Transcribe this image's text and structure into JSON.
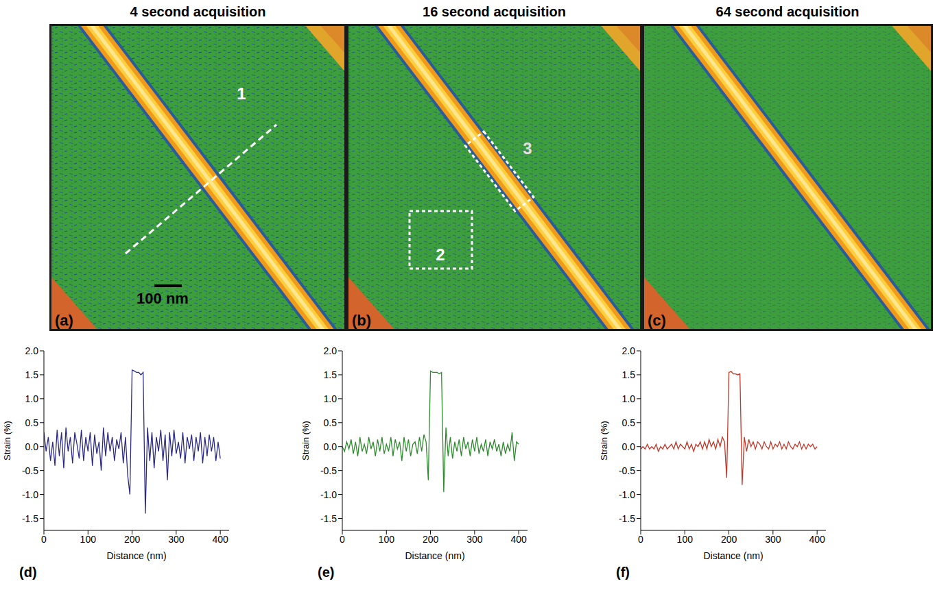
{
  "columns": [
    "4 second acquisition",
    "16 second acquisition",
    "64 second acquisition"
  ],
  "maps": [
    {
      "panel_label": "(a)",
      "scale_bar": "100 nm",
      "markers": [
        {
          "label": "1",
          "kind": "line"
        }
      ]
    },
    {
      "panel_label": "(b)",
      "markers": [
        {
          "label": "2",
          "kind": "box"
        },
        {
          "label": "3",
          "kind": "box"
        }
      ]
    },
    {
      "panel_label": "(c)"
    }
  ],
  "chart_data": [
    {
      "type": "line",
      "panel_label": "(d)",
      "x_label": "Distance (nm)",
      "y_label": "Strain (%)",
      "color": "#2b2b85",
      "xlim": [
        0,
        420
      ],
      "xticks": [
        0,
        100,
        200,
        300,
        400
      ],
      "ylim": [
        -1.75,
        2.0
      ],
      "yticks": [
        -1.5,
        {
          "value": -1,
          "label": "-1.0"
        },
        -0.5,
        {
          "value": 0,
          "label": "0.0"
        },
        0.5,
        {
          "value": 1,
          "label": "1.0"
        },
        1.5,
        {
          "value": 2,
          "label": "2.0"
        }
      ],
      "x": [
        0,
        5,
        10,
        15,
        20,
        25,
        30,
        35,
        40,
        45,
        50,
        55,
        60,
        65,
        70,
        75,
        80,
        85,
        90,
        95,
        100,
        105,
        110,
        115,
        120,
        125,
        130,
        135,
        140,
        145,
        150,
        155,
        160,
        165,
        170,
        175,
        180,
        185,
        190,
        195,
        200,
        205,
        210,
        215,
        220,
        225,
        230,
        235,
        240,
        245,
        250,
        255,
        260,
        265,
        270,
        275,
        280,
        285,
        290,
        295,
        300,
        305,
        310,
        315,
        320,
        325,
        330,
        335,
        340,
        345,
        350,
        355,
        360,
        365,
        370,
        375,
        380,
        385,
        390,
        395,
        400
      ],
      "values": [
        0.3,
        -0.1,
        0.2,
        -0.3,
        0.1,
        -0.4,
        0.35,
        -0.2,
        0.3,
        -0.45,
        0.4,
        -0.1,
        0.2,
        -0.35,
        0.3,
        0.05,
        -0.25,
        0.35,
        -0.3,
        0.2,
        -0.1,
        0.3,
        -0.4,
        0.25,
        -0.15,
        0.1,
        -0.5,
        0.4,
        -0.2,
        0.3,
        -0.1,
        0.2,
        -0.3,
        0.15,
        -0.05,
        0.3,
        -0.35,
        0.2,
        -0.6,
        -1.0,
        1.6,
        1.58,
        1.55,
        1.55,
        1.5,
        1.55,
        -1.4,
        0.4,
        -0.3,
        0.3,
        -0.45,
        0.2,
        -0.1,
        0.35,
        -0.3,
        0.25,
        -0.7,
        0.3,
        -0.2,
        0.35,
        -0.15,
        0.1,
        -0.25,
        0.3,
        -0.35,
        0.2,
        -0.05,
        0.25,
        -0.3,
        0.2,
        -0.1,
        0.3,
        -0.35,
        0.2,
        -0.2,
        0.25,
        -0.1,
        0.2,
        -0.3,
        0.1,
        -0.25
      ]
    },
    {
      "type": "line",
      "panel_label": "(e)",
      "x_label": "Distance (nm)",
      "y_label": "Strain (%)",
      "color": "#2e8b2e",
      "xlim": [
        0,
        420
      ],
      "xticks": [
        0,
        100,
        200,
        300,
        400
      ],
      "ylim": [
        -1.75,
        2.0
      ],
      "yticks": [
        -1.5,
        {
          "value": -1,
          "label": "-1.0"
        },
        -0.5,
        {
          "value": 0,
          "label": "0.0"
        },
        0.5,
        {
          "value": 1,
          "label": "1.0"
        },
        1.5,
        {
          "value": 2,
          "label": "2.0"
        }
      ],
      "x": [
        0,
        5,
        10,
        15,
        20,
        25,
        30,
        35,
        40,
        45,
        50,
        55,
        60,
        65,
        70,
        75,
        80,
        85,
        90,
        95,
        100,
        105,
        110,
        115,
        120,
        125,
        130,
        135,
        140,
        145,
        150,
        155,
        160,
        165,
        170,
        175,
        180,
        185,
        190,
        195,
        200,
        205,
        210,
        215,
        220,
        225,
        230,
        235,
        240,
        245,
        250,
        255,
        260,
        265,
        270,
        275,
        280,
        285,
        290,
        295,
        300,
        305,
        310,
        315,
        320,
        325,
        330,
        335,
        340,
        345,
        350,
        355,
        360,
        365,
        370,
        375,
        380,
        385,
        390,
        395,
        400
      ],
      "values": [
        0.0,
        -0.1,
        0.1,
        -0.05,
        0.15,
        -0.15,
        0.1,
        -0.2,
        0.2,
        -0.1,
        0.05,
        -0.15,
        0.2,
        -0.05,
        0.1,
        -0.2,
        0.15,
        -0.1,
        0.2,
        -0.15,
        0.05,
        -0.1,
        0.2,
        -0.2,
        0.15,
        -0.05,
        0.1,
        -0.3,
        0.2,
        -0.1,
        0.15,
        -0.2,
        0.05,
        0.1,
        -0.15,
        0.2,
        -0.1,
        0.25,
        0.1,
        -0.7,
        1.58,
        1.55,
        1.55,
        1.55,
        1.52,
        1.55,
        -0.95,
        0.4,
        -0.2,
        0.2,
        -0.25,
        0.1,
        -0.1,
        0.15,
        -0.2,
        0.2,
        -0.05,
        0.1,
        -0.2,
        0.15,
        -0.1,
        0.2,
        -0.15,
        0.05,
        -0.1,
        0.15,
        -0.2,
        0.1,
        -0.05,
        0.15,
        -0.1,
        0.05,
        -0.2,
        0.1,
        -0.15,
        0.05,
        -0.1,
        0.3,
        -0.3,
        0.1,
        0.05
      ]
    },
    {
      "type": "line",
      "panel_label": "(f)",
      "x_label": "Distance (nm)",
      "y_label": "Strain (%)",
      "color": "#c0392b",
      "xlim": [
        0,
        420
      ],
      "xticks": [
        0,
        100,
        200,
        300,
        400
      ],
      "ylim": [
        -1.75,
        2.0
      ],
      "yticks": [
        -1.5,
        {
          "value": -1,
          "label": "-1.0"
        },
        -0.5,
        {
          "value": 0,
          "label": "0.0"
        },
        0.5,
        {
          "value": 1,
          "label": "1.0"
        },
        1.5,
        {
          "value": 2,
          "label": "2.0"
        }
      ],
      "x": [
        0,
        5,
        10,
        15,
        20,
        25,
        30,
        35,
        40,
        45,
        50,
        55,
        60,
        65,
        70,
        75,
        80,
        85,
        90,
        95,
        100,
        105,
        110,
        115,
        120,
        125,
        130,
        135,
        140,
        145,
        150,
        155,
        160,
        165,
        170,
        175,
        180,
        185,
        190,
        195,
        200,
        205,
        210,
        215,
        220,
        225,
        230,
        235,
        240,
        245,
        250,
        255,
        260,
        265,
        270,
        275,
        280,
        285,
        290,
        295,
        300,
        305,
        310,
        315,
        320,
        325,
        330,
        335,
        340,
        345,
        350,
        355,
        360,
        365,
        370,
        375,
        380,
        385,
        390,
        395,
        400
      ],
      "values": [
        -0.05,
        0.0,
        -0.05,
        0.05,
        -0.05,
        0.0,
        -0.05,
        0.05,
        -0.1,
        0.0,
        -0.05,
        0.05,
        -0.05,
        0.0,
        0.05,
        -0.05,
        0.1,
        -0.05,
        0.05,
        0.0,
        -0.05,
        0.1,
        -0.05,
        0.05,
        -0.1,
        0.05,
        0.0,
        0.1,
        -0.05,
        0.1,
        -0.05,
        0.15,
        0.0,
        0.1,
        -0.05,
        0.15,
        0.0,
        0.2,
        0.1,
        -0.65,
        1.55,
        1.57,
        1.52,
        1.52,
        1.5,
        1.52,
        -0.8,
        0.2,
        -0.1,
        0.15,
        0.0,
        0.1,
        -0.05,
        0.1,
        0.05,
        -0.05,
        0.1,
        0.0,
        -0.05,
        0.1,
        -0.05,
        0.05,
        0.0,
        0.1,
        -0.05,
        0.05,
        -0.05,
        0.1,
        0.0,
        -0.05,
        0.05,
        0.0,
        0.1,
        -0.05,
        0.05,
        -0.05,
        0.05,
        0.0,
        0.05,
        -0.05,
        0.0
      ]
    }
  ]
}
